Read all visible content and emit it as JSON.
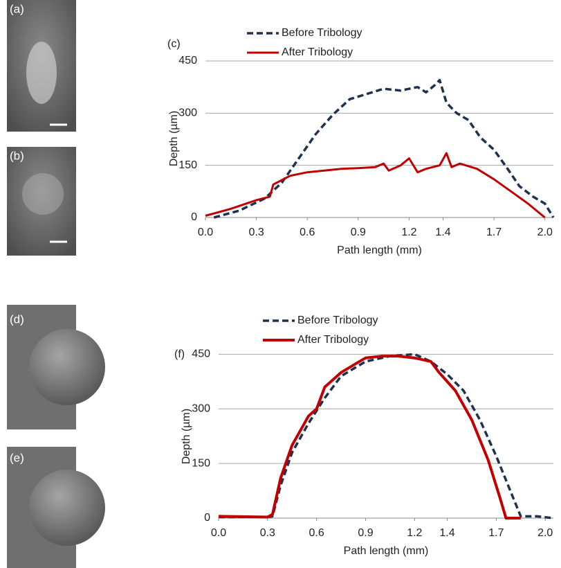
{
  "panels": [
    {
      "label": "(a)"
    },
    {
      "label": "(b)"
    },
    {
      "label": "(d)"
    },
    {
      "label": "(e)"
    }
  ],
  "chart_data": [
    {
      "type": "line",
      "title": "(c)",
      "x_label": "Path length (mm)",
      "y_label": "Depth (µm)",
      "xlim": [
        0,
        2.05
      ],
      "ylim": [
        0,
        450
      ],
      "xticks": [
        {
          "value": 0,
          "label": "0.0"
        },
        0.3,
        0.6,
        0.9,
        1.2,
        1.4,
        1.7,
        {
          "value": 2,
          "label": "2.0"
        }
      ],
      "yticks": [
        0,
        150,
        300,
        450
      ],
      "grid": true,
      "legend": "top-left",
      "series": [
        {
          "name": "Before Tribology",
          "color": "#1f3151",
          "dash": true,
          "x": [
            0.05,
            0.2,
            0.35,
            0.45,
            0.55,
            0.65,
            0.75,
            0.85,
            0.95,
            1.05,
            1.15,
            1.25,
            1.3,
            1.35,
            1.38,
            1.42,
            1.48,
            1.55,
            1.62,
            1.7,
            1.78,
            1.85,
            1.93,
            2.0,
            2.05
          ],
          "values": [
            0,
            20,
            55,
            100,
            170,
            240,
            295,
            340,
            355,
            370,
            365,
            375,
            360,
            380,
            395,
            330,
            300,
            280,
            230,
            195,
            140,
            90,
            60,
            40,
            0
          ]
        },
        {
          "name": "After Tribology",
          "color": "#c00000",
          "dash": false,
          "x": [
            0,
            0.15,
            0.3,
            0.38,
            0.4,
            0.5,
            0.6,
            0.7,
            0.8,
            0.9,
            1.0,
            1.05,
            1.08,
            1.15,
            1.2,
            1.25,
            1.3,
            1.38,
            1.42,
            1.45,
            1.5,
            1.6,
            1.7,
            1.8,
            1.9,
            1.95,
            2.0
          ],
          "values": [
            5,
            25,
            50,
            60,
            95,
            120,
            130,
            135,
            140,
            142,
            145,
            155,
            135,
            150,
            170,
            130,
            140,
            150,
            185,
            145,
            155,
            140,
            110,
            75,
            40,
            20,
            0
          ]
        }
      ]
    },
    {
      "type": "line",
      "title": "(f)",
      "x_label": "Path length (mm)",
      "y_label": "Depth (µm)",
      "xlim": [
        0,
        2.05
      ],
      "ylim": [
        0,
        525
      ],
      "xticks": [
        {
          "value": 0,
          "label": "0.0"
        },
        0.3,
        0.6,
        0.9,
        1.2,
        1.4,
        1.7,
        {
          "value": 2,
          "label": "2.0"
        }
      ],
      "yticks": [
        0,
        150,
        300,
        450
      ],
      "grid": true,
      "legend": "top-left",
      "series": [
        {
          "name": "Before Tribology",
          "color": "#1f3151",
          "dash": true,
          "x": [
            0,
            0.3,
            0.33,
            0.38,
            0.45,
            0.55,
            0.65,
            0.75,
            0.9,
            1.05,
            1.2,
            1.3,
            1.4,
            1.5,
            1.6,
            1.7,
            1.8,
            1.85,
            1.95,
            2.05
          ],
          "values": [
            3,
            3,
            5,
            90,
            180,
            260,
            330,
            390,
            430,
            445,
            450,
            430,
            395,
            350,
            270,
            170,
            60,
            5,
            5,
            0
          ]
        },
        {
          "name": "After Tribology",
          "color": "#c00000",
          "dash": false,
          "x": [
            0,
            0.3,
            0.33,
            0.38,
            0.45,
            0.55,
            0.6,
            0.65,
            0.75,
            0.9,
            1.0,
            1.1,
            1.2,
            1.3,
            1.35,
            1.45,
            1.55,
            1.65,
            1.72,
            1.76,
            1.85
          ],
          "values": [
            5,
            3,
            10,
            110,
            200,
            280,
            300,
            360,
            400,
            440,
            445,
            445,
            440,
            430,
            400,
            350,
            270,
            160,
            60,
            0,
            0
          ]
        }
      ]
    }
  ]
}
